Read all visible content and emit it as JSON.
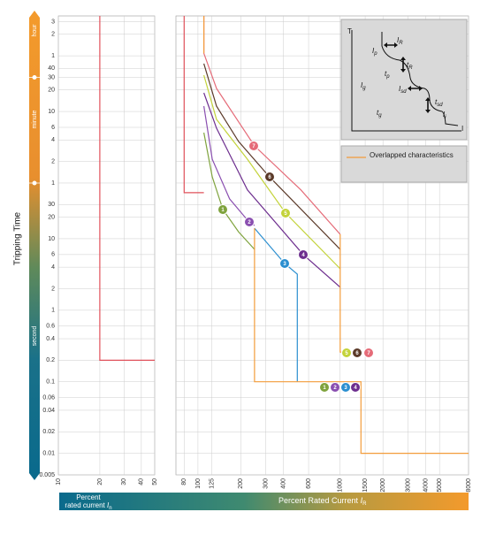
{
  "chart_data": [
    {
      "type": "line",
      "ylabel": "Tripping Time",
      "time_bands": [
        "hour",
        "minute",
        "second"
      ],
      "xlabel": {
        "lines": [
          "Percent",
          "rated current"
        ],
        "symbol": "I",
        "sub": "n"
      },
      "xscale": "log",
      "yscale": "log",
      "xlim": [
        10,
        50
      ],
      "xticks": [
        10,
        20,
        30,
        40,
        50
      ],
      "ylim": [
        0.005,
        13000
      ],
      "yticks": [
        {
          "value": 10800,
          "label": "3"
        },
        {
          "value": 7200,
          "label": "2"
        },
        {
          "value": 3600,
          "label": "1"
        },
        {
          "value": 2400,
          "label": "40"
        },
        {
          "value": 1800,
          "label": "30"
        },
        {
          "value": 1200,
          "label": "20"
        },
        {
          "value": 600,
          "label": "10"
        },
        {
          "value": 360,
          "label": "6"
        },
        {
          "value": 240,
          "label": "4"
        },
        {
          "value": 120,
          "label": "2"
        },
        {
          "value": 60,
          "label": "1"
        },
        30,
        20,
        10,
        6,
        4,
        2,
        1,
        0.6,
        0.4,
        0.2,
        0.1,
        0.06,
        0.04,
        0.02,
        0.01,
        0.005
      ],
      "grid": true,
      "series": [
        {
          "color": "#e0505a",
          "x": [
            20,
            20,
            50
          ],
          "values": [
            13000,
            0.2,
            0.2
          ]
        }
      ]
    },
    {
      "type": "line",
      "xlabel": {
        "text": "Percent Rated Current",
        "symbol": "I",
        "sub": "R"
      },
      "xscale": "log",
      "yscale": "log",
      "xlim": [
        70,
        8000
      ],
      "xticks": [
        80,
        100,
        125,
        200,
        300,
        400,
        600,
        1000,
        1500,
        2000,
        3000,
        4000,
        5000,
        8000
      ],
      "ylim": [
        0.005,
        13000
      ],
      "grid": true,
      "legend": "upper right",
      "series": [
        {
          "color": "#e0505a",
          "x": [
            80,
            80,
            110
          ],
          "values": [
            13000,
            44,
            44
          ]
        },
        {
          "name": "1",
          "color": "#7fa33d",
          "x": [
            110,
            126,
            150,
            193,
            250
          ],
          "values": [
            304,
            73,
            25.5,
            12.5,
            7.1
          ]
        },
        {
          "name": "2",
          "color": "#8a4fb0",
          "x": [
            110,
            126,
            167,
            229,
            250
          ],
          "values": [
            713,
            129,
            36,
            17.1,
            15.3
          ]
        },
        {
          "name": "3",
          "color": "#2b8fd0",
          "x": [
            250,
            407,
            500,
            500
          ],
          "values": [
            14,
            4.5,
            3.2,
            0.1
          ]
        },
        {
          "name": "4",
          "color": "#6d2e8e",
          "x": [
            110,
            135,
            223,
            550,
            1000
          ],
          "values": [
            1094,
            351,
            48,
            6,
            2.1
          ]
        },
        {
          "name": "5",
          "color": "#c3d33a",
          "x": [
            110,
            135,
            223,
            414,
            1000
          ],
          "values": [
            1932,
            466,
            129,
            22.8,
            3.8
          ]
        },
        {
          "name": "6",
          "color": "#5b3a29",
          "x": [
            110,
            135,
            193,
            319,
            1000
          ],
          "values": [
            2800,
            713,
            229,
            73,
            7.1
          ]
        },
        {
          "name": "7",
          "color": "#e56b78",
          "x": [
            110,
            110,
            135,
            250,
            530,
            1000
          ],
          "values": [
            13000,
            3900,
            1260,
            198,
            48,
            11.5
          ]
        },
        {
          "name": "Overlapped characteristics",
          "color": "#f39c3a",
          "x": [
            110,
            110,
            250,
            250,
            250,
            1400,
            1400,
            8000,
            1000,
            1000,
            1000,
            1400
          ],
          "values": [
            13000,
            3900,
            null,
            14,
            0.1,
            0.1,
            0.01,
            0.01,
            null,
            11.5,
            0.26,
            0.26
          ]
        }
      ],
      "inset": {
        "y_axis": "T",
        "x_axis": "I",
        "labels": [
          {
            "text": "I",
            "sub": "R"
          },
          {
            "text": "I",
            "sub": "p"
          },
          {
            "text": "t",
            "sub": "R"
          },
          {
            "text": "t",
            "sub": "p"
          },
          {
            "text": "I",
            "sub": "g"
          },
          {
            "text": "I",
            "sub": "sd"
          },
          {
            "text": "t",
            "sub": "sd"
          },
          {
            "text": "t",
            "sub": "g"
          },
          {
            "text": "I",
            "sub": "i"
          }
        ]
      }
    }
  ]
}
